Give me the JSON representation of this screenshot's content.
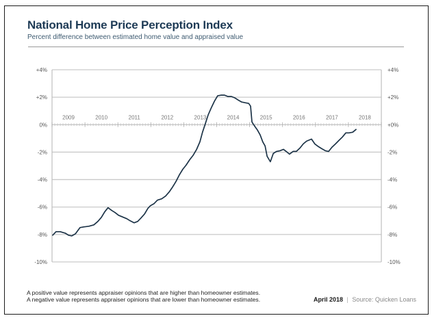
{
  "header": {
    "title": "National Home Price Perception Index",
    "subtitle": "Percent difference between estimated home value and appraised value"
  },
  "footer": {
    "note_positive": "A positive value represents appraiser opinions that are higher than homeowner estimates.",
    "note_negative": "A negative value represents appraiser opinions that are lower than homeowner estimates.",
    "date": "April 2018",
    "separator": "|",
    "source": "Source: Quicken Loans"
  },
  "colors": {
    "line": "#1c3347",
    "grid": "#c9c9c9",
    "title": "#1d3a55"
  },
  "chart_data": {
    "type": "line",
    "title": "National Home Price Perception Index",
    "subtitle": "Percent difference between estimated home value and appraised value",
    "xlabel": "",
    "ylabel": "",
    "xlim": [
      2009,
      2019
    ],
    "ylim": [
      -10,
      4
    ],
    "grid": true,
    "legend": "none",
    "y_ticks_left": [
      {
        "value": 4,
        "label": "+4%"
      },
      {
        "value": 2,
        "label": "+2%"
      },
      {
        "value": 0,
        "label": "0%"
      },
      {
        "value": -2,
        "label": "-2%"
      },
      {
        "value": -4,
        "label": "-4%"
      },
      {
        "value": -6,
        "label": "-6%"
      },
      {
        "value": -8,
        "label": "-8%"
      },
      {
        "value": -10,
        "label": "-10%"
      }
    ],
    "y_ticks_right": [
      {
        "value": 4,
        "label": "+4%"
      },
      {
        "value": 2,
        "label": "+2%"
      },
      {
        "value": 0,
        "label": "+0%"
      },
      {
        "value": -2,
        "label": "-2%"
      },
      {
        "value": -4,
        "label": "-4%"
      },
      {
        "value": -6,
        "label": "-6%"
      },
      {
        "value": -8,
        "label": "-8%"
      },
      {
        "value": -10,
        "label": "-10%"
      }
    ],
    "x_year_labels": [
      "2009",
      "2010",
      "2011",
      "2012",
      "2013",
      "2014",
      "2015",
      "2016",
      "2017",
      "2018"
    ],
    "series": [
      {
        "name": "National Home Price Perception Index",
        "x": [
          2009.02,
          2009.12,
          2009.25,
          2009.4,
          2009.5,
          2009.6,
          2009.71,
          2009.85,
          2009.96,
          2010.12,
          2010.27,
          2010.39,
          2010.5,
          2010.6,
          2010.7,
          2010.81,
          2010.91,
          2011.02,
          2011.12,
          2011.27,
          2011.37,
          2011.49,
          2011.6,
          2011.7,
          2011.81,
          2011.91,
          2011.99,
          2012.1,
          2012.2,
          2012.33,
          2012.45,
          2012.56,
          2012.66,
          2012.76,
          2012.87,
          2012.97,
          2013.07,
          2013.18,
          2013.28,
          2013.39,
          2013.49,
          2013.57,
          2013.66,
          2013.74,
          2013.84,
          2013.93,
          2014.03,
          2014.14,
          2014.24,
          2014.34,
          2014.45,
          2014.55,
          2014.65,
          2014.76,
          2014.86,
          2014.97,
          2015.03,
          2015.07,
          2015.15,
          2015.24,
          2015.32,
          2015.4,
          2015.47,
          2015.53,
          2015.63,
          2015.72,
          2015.82,
          2015.92,
          2016.03,
          2016.11,
          2016.21,
          2016.32,
          2016.42,
          2016.53,
          2016.63,
          2016.73,
          2016.88,
          2016.98,
          2017.09,
          2017.19,
          2017.3,
          2017.4,
          2017.5,
          2017.61,
          2017.71,
          2017.82,
          2017.92,
          2018.02,
          2018.13,
          2018.23
        ],
        "values": [
          -8.05,
          -7.8,
          -7.8,
          -7.9,
          -8.05,
          -8.1,
          -7.95,
          -7.5,
          -7.45,
          -7.4,
          -7.3,
          -7.05,
          -6.75,
          -6.35,
          -6.05,
          -6.25,
          -6.4,
          -6.6,
          -6.7,
          -6.85,
          -7.0,
          -7.15,
          -7.05,
          -6.8,
          -6.5,
          -6.1,
          -5.9,
          -5.75,
          -5.5,
          -5.4,
          -5.2,
          -4.9,
          -4.55,
          -4.15,
          -3.65,
          -3.25,
          -2.95,
          -2.55,
          -2.25,
          -1.8,
          -1.25,
          -0.55,
          0.1,
          0.7,
          1.25,
          1.7,
          2.1,
          2.15,
          2.15,
          2.05,
          2.05,
          1.95,
          1.8,
          1.65,
          1.6,
          1.55,
          1.35,
          0.2,
          -0.1,
          -0.4,
          -0.75,
          -1.25,
          -1.55,
          -2.3,
          -2.7,
          -2.1,
          -1.95,
          -1.9,
          -1.8,
          -1.95,
          -2.15,
          -1.95,
          -1.95,
          -1.7,
          -1.4,
          -1.2,
          -1.05,
          -1.4,
          -1.6,
          -1.75,
          -1.9,
          -1.95,
          -1.65,
          -1.4,
          -1.15,
          -0.9,
          -0.6,
          -0.6,
          -0.55,
          -0.35
        ]
      }
    ]
  }
}
